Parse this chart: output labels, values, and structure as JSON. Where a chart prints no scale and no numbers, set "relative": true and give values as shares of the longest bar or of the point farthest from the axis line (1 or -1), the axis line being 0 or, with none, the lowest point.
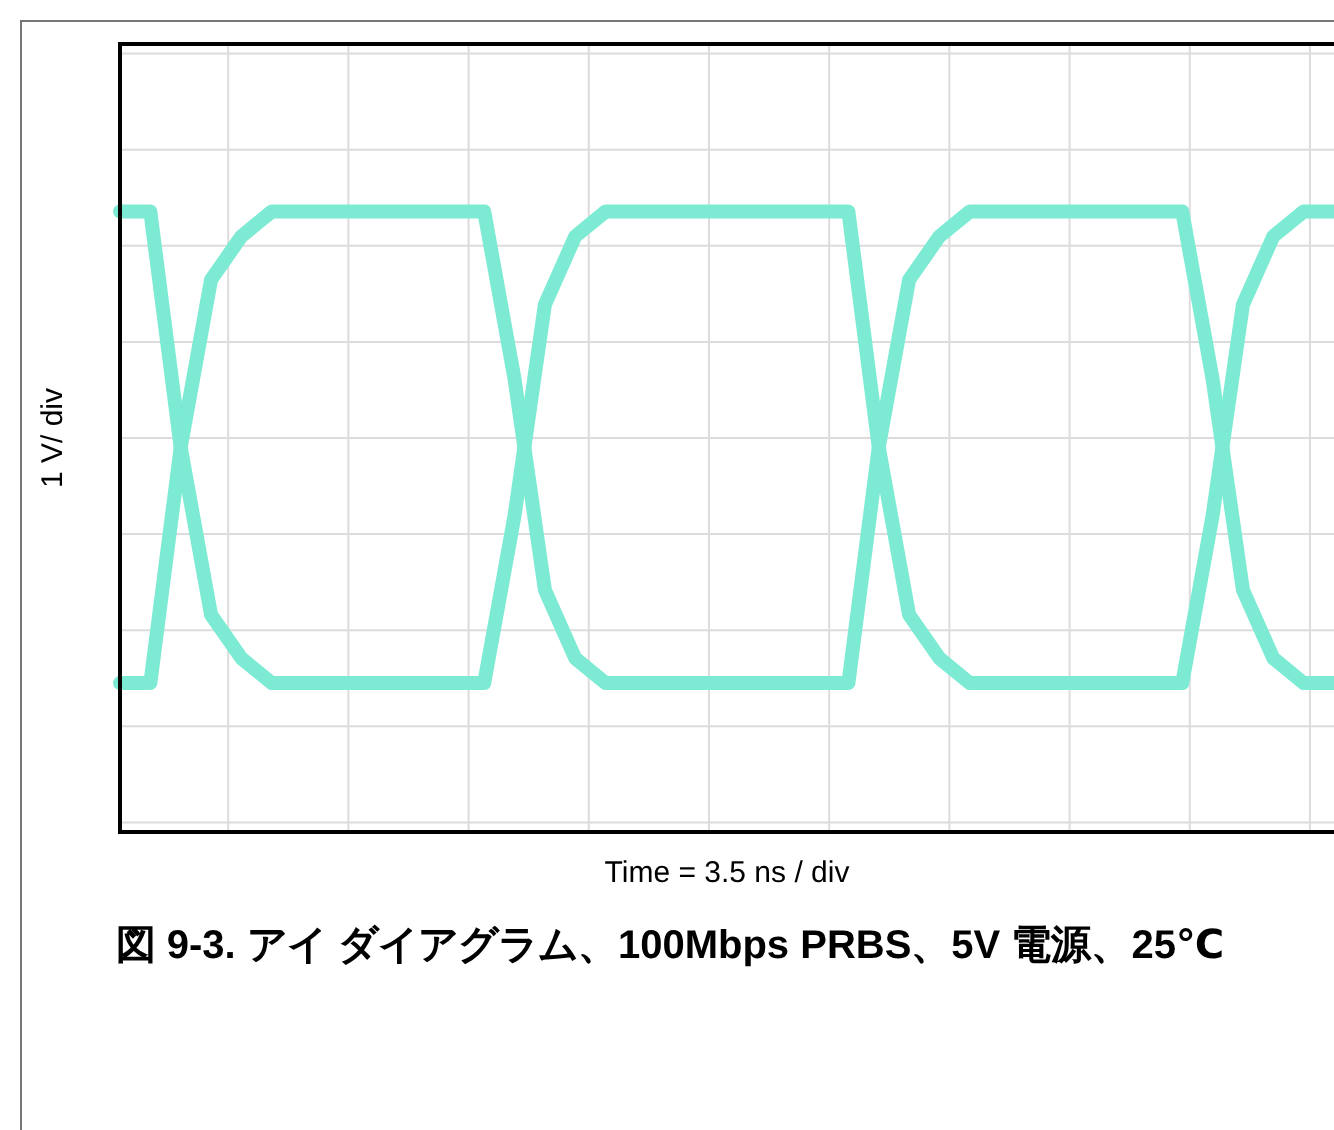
{
  "chart_data": {
    "type": "line",
    "relative": true,
    "title": "図 9-3. アイ ダイアグラム、100Mbps PRBS、5V 電源、25℃",
    "xlabel": "Time = 3.5 ns / div",
    "ylabel": "1 V/ div",
    "grid": true,
    "legend": false,
    "marker": "none",
    "line_style": "solid",
    "categories": [
      null,
      null,
      null,
      null,
      null,
      null,
      null,
      null,
      null,
      null,
      null,
      null,
      null,
      null,
      null,
      null,
      null,
      null,
      null,
      null,
      null,
      null,
      null,
      null,
      null,
      null,
      null,
      null,
      null,
      null,
      null,
      null,
      null,
      null,
      null,
      null,
      null,
      null,
      null,
      null,
      null
    ],
    "series": [
      {
        "color": "#7debd3",
        "values": [
          1,
          1,
          0.62,
          0.35,
          0.28,
          0.24,
          0.24,
          0.24,
          0.24,
          0.24,
          0.24,
          0.24,
          0.24,
          0.51,
          0.85,
          0.96,
          1,
          1,
          1,
          1,
          1,
          1,
          1,
          1,
          1,
          0.62,
          0.35,
          0.28,
          0.24,
          0.24,
          0.24,
          0.24,
          0.24,
          0.24,
          0.24,
          0.24,
          0.51,
          0.85,
          0.96,
          1,
          1
        ]
      },
      {
        "color": "#7debd3",
        "values": [
          0.24,
          0.24,
          0.62,
          0.89,
          0.96,
          1,
          1,
          1,
          1,
          1,
          1,
          1,
          1,
          0.73,
          0.39,
          0.28,
          0.24,
          0.24,
          0.24,
          0.24,
          0.24,
          0.24,
          0.24,
          0.24,
          0.24,
          0.62,
          0.89,
          0.96,
          1,
          1,
          1,
          1,
          1,
          1,
          1,
          1,
          0.73,
          0.39,
          0.28,
          0.24,
          0.24
        ]
      }
    ]
  }
}
